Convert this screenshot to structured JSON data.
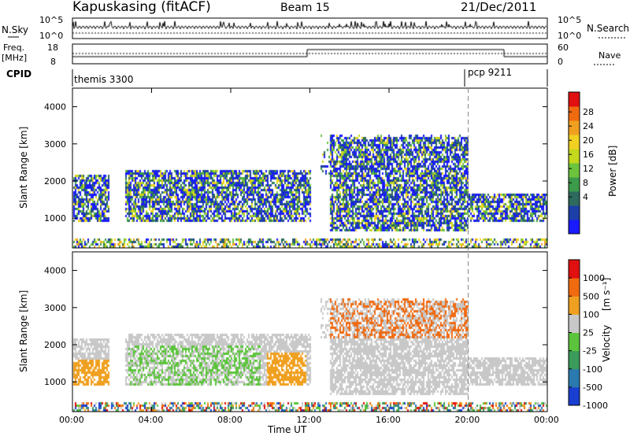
{
  "header": {
    "station": "Kapuskasing (fitACF)",
    "beam": "Beam 15",
    "date": "21/Dec/2011"
  },
  "noise_panel": {
    "left_label": "N.Sky",
    "right_label": "N.Search",
    "left_ticks": [
      "10^5",
      "10^0"
    ],
    "right_ticks": [
      "10^5",
      "10^0"
    ]
  },
  "freq_panel": {
    "left_label_1": "Freq.",
    "left_label_2": "[MHz]",
    "right_label": "Nave",
    "left_ticks": [
      "18",
      "8"
    ],
    "right_ticks": [
      "60",
      "0"
    ]
  },
  "cpid_panel": {
    "label": "CPID",
    "programs": [
      {
        "name": "themis 3300",
        "start_hour": 0
      },
      {
        "name": "pcp 9211",
        "start_hour": 20
      }
    ]
  },
  "chart_data": [
    {
      "type": "heatmap",
      "name": "power",
      "ylabel": "Slant Range [km]",
      "yticks": [
        "4000",
        "3000",
        "2000",
        "1000"
      ],
      "ylim": [
        200,
        4500
      ],
      "xlim": [
        0,
        24
      ],
      "colorbar_label": "Power [dB]",
      "colorbar_ticks": [
        "28",
        "24",
        "20",
        "16",
        "12",
        "8",
        "4"
      ],
      "colorbar_range": [
        0,
        30
      ],
      "colorbar_colors": [
        "#1a1aff",
        "#1c3fa8",
        "#2e6a5e",
        "#3c9b4a",
        "#6cc43c",
        "#c4d81c",
        "#f0d020",
        "#f0a020",
        "#f06a10",
        "#e01010"
      ],
      "note_regions": [
        {
          "t0": 0.0,
          "t1": 1.8,
          "r0": 900,
          "r1": 2200
        },
        {
          "t0": 2.6,
          "t1": 12.0,
          "r0": 900,
          "r1": 2300
        },
        {
          "t0": 13.0,
          "t1": 20.0,
          "r0": 700,
          "r1": 3200
        },
        {
          "t0": 20.0,
          "t1": 24.0,
          "r0": 900,
          "r1": 1700
        }
      ]
    },
    {
      "type": "heatmap",
      "name": "velocity",
      "ylabel": "Slant Range [km]",
      "yticks": [
        "4000",
        "3000",
        "2000",
        "1000"
      ],
      "ylim": [
        200,
        4500
      ],
      "xlim": [
        0,
        24
      ],
      "colorbar_label": "Velocity",
      "colorbar_unit": "[m s⁻¹]",
      "colorbar_ticks": [
        "1000",
        "500",
        "100",
        "25",
        "-25",
        "-100",
        "-500",
        "-1000"
      ],
      "colorbar_colors": [
        "#1a3fd0",
        "#2a7ab0",
        "#3a9b5a",
        "#5cc43c",
        "#c8c8c8",
        "#f0a020",
        "#f06a10",
        "#e01010"
      ]
    }
  ],
  "x_axis": {
    "ticks": [
      "00:00",
      "04:00",
      "08:00",
      "12:00",
      "16:00",
      "20:00",
      "00:00"
    ],
    "label": "Time UT"
  }
}
